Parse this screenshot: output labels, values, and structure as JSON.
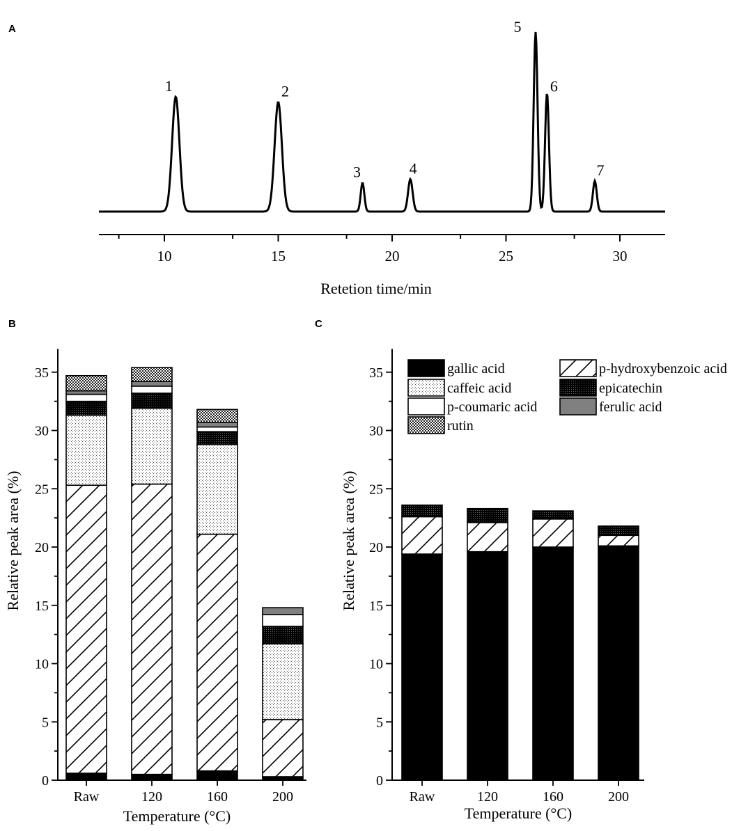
{
  "colors": {
    "ink": "#000000",
    "ferulic": "#808080",
    "background": "#ffffff"
  },
  "chart_data": [
    {
      "panel": "A",
      "type": "line",
      "xlabel": "Retetion time/min",
      "xlim": [
        7,
        32
      ],
      "xticks": [
        10,
        15,
        20,
        25,
        30
      ],
      "ylabel": "",
      "peaks": [
        {
          "label": "1",
          "x": 10.5,
          "height": 0.64
        },
        {
          "label": "2",
          "x": 15.0,
          "height": 0.61
        },
        {
          "label": "3",
          "x": 18.7,
          "height": 0.16
        },
        {
          "label": "4",
          "x": 20.8,
          "height": 0.18
        },
        {
          "label": "5",
          "x": 26.3,
          "height": 1.0
        },
        {
          "label": "6",
          "x": 26.8,
          "height": 0.66
        },
        {
          "label": "7",
          "x": 28.9,
          "height": 0.17
        }
      ]
    },
    {
      "panel": "B",
      "type": "bar",
      "stacked": true,
      "categories": [
        "Raw",
        "120",
        "160",
        "200"
      ],
      "xlabel": "Temperature (°C)",
      "ylabel": "Relative peak area (%)",
      "ylim": [
        0,
        37
      ],
      "yticks": [
        0,
        5,
        10,
        15,
        20,
        25,
        30,
        35
      ],
      "series": [
        {
          "key": "gallic",
          "values": [
            0.6,
            0.5,
            0.8,
            0.3
          ]
        },
        {
          "key": "hydroxybenzoic",
          "values": [
            24.7,
            24.9,
            20.3,
            4.9
          ]
        },
        {
          "key": "caffeic",
          "values": [
            6.0,
            6.5,
            7.7,
            6.5
          ]
        },
        {
          "key": "epicatechin",
          "values": [
            1.2,
            1.3,
            1.1,
            1.5
          ]
        },
        {
          "key": "coumaric",
          "values": [
            0.6,
            0.6,
            0.4,
            1.0
          ]
        },
        {
          "key": "ferulic",
          "values": [
            0.3,
            0.4,
            0.4,
            0.6
          ]
        },
        {
          "key": "rutin",
          "values": [
            1.3,
            1.2,
            1.1,
            0
          ]
        }
      ]
    },
    {
      "panel": "C",
      "type": "bar",
      "stacked": true,
      "categories": [
        "Raw",
        "120",
        "160",
        "200"
      ],
      "xlabel": "Temperature (°C)",
      "ylabel": "Relative peak area (%)",
      "ylim": [
        0,
        37
      ],
      "yticks": [
        0,
        5,
        10,
        15,
        20,
        25,
        30,
        35
      ],
      "series": [
        {
          "key": "gallic",
          "values": [
            19.4,
            19.6,
            20.0,
            20.1
          ]
        },
        {
          "key": "hydroxybenzoic",
          "values": [
            3.2,
            2.5,
            2.4,
            0.9
          ]
        },
        {
          "key": "epicatechin",
          "values": [
            1.0,
            1.2,
            0.7,
            0.8
          ]
        }
      ]
    }
  ],
  "legend": {
    "placement": "top",
    "entries": [
      {
        "key": "gallic",
        "label": "gallic acid"
      },
      {
        "key": "hydroxybenzoic",
        "label": "p-hydroxybenzoic acid"
      },
      {
        "key": "caffeic",
        "label": "caffeic acid"
      },
      {
        "key": "epicatechin",
        "label": "epicatechin"
      },
      {
        "key": "coumaric",
        "label": "p-coumaric acid"
      },
      {
        "key": "ferulic",
        "label": "ferulic acid"
      },
      {
        "key": "rutin",
        "label": "rutin"
      }
    ]
  },
  "panel_letters": [
    "A",
    "B",
    "C"
  ]
}
